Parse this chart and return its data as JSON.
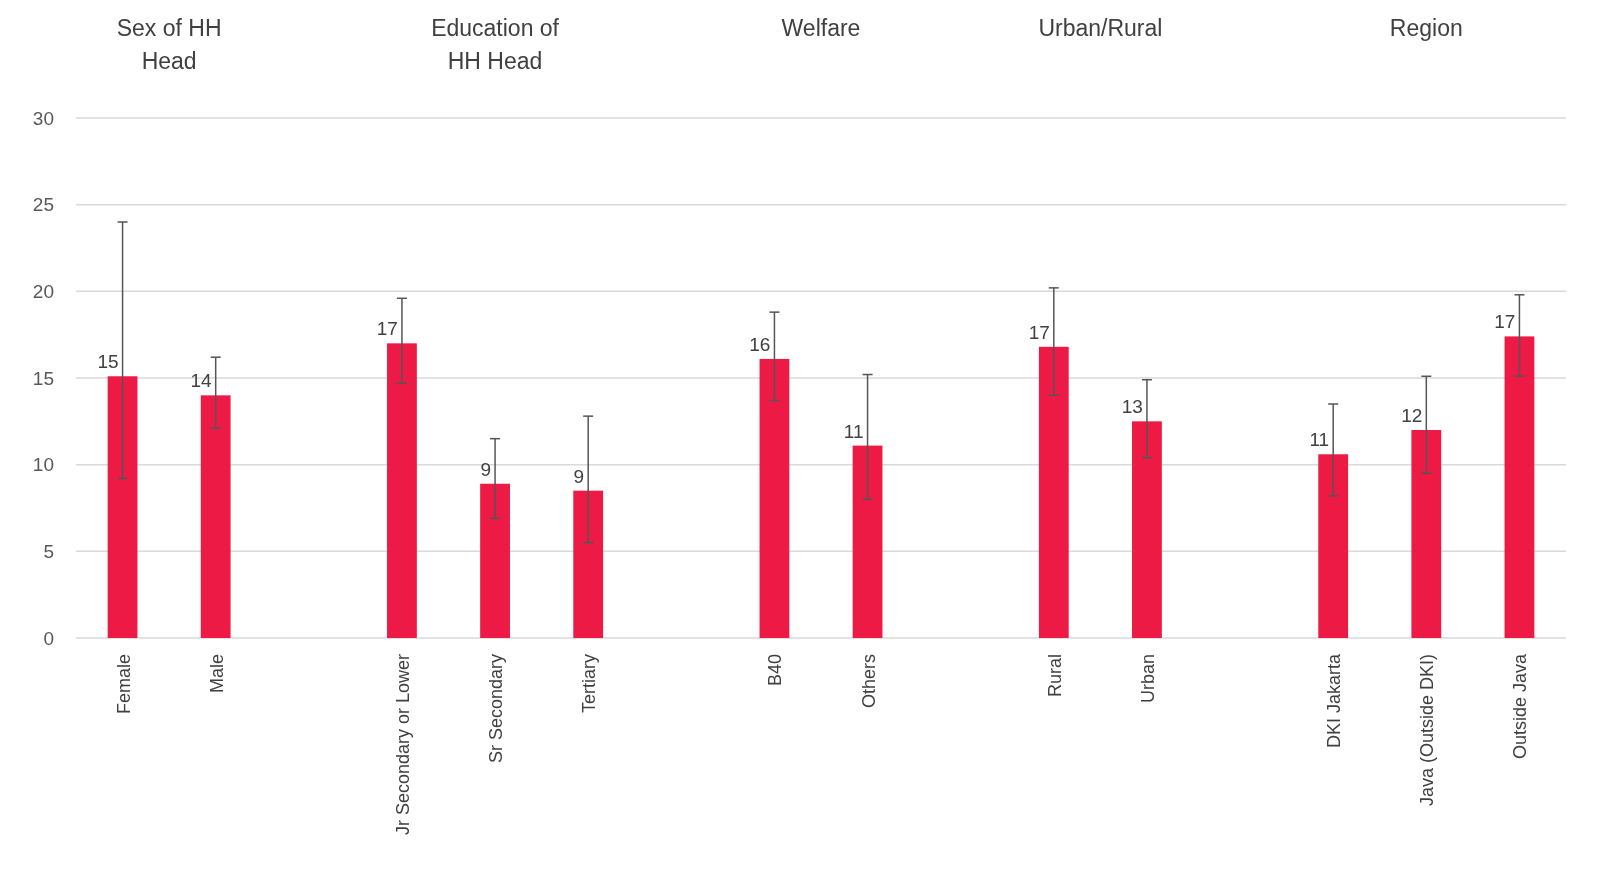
{
  "chart_data": {
    "type": "bar",
    "categories": [
      "Female",
      "Male",
      null,
      "Jr Secondary or Lower",
      "Sr Secondary",
      "Tertiary",
      null,
      "B40",
      "Others",
      null,
      "Rural",
      "Urban",
      null,
      "DKI Jakarta",
      "Java (Outside DKI)",
      "Outside Java"
    ],
    "values": [
      15.1,
      14.0,
      null,
      17.0,
      8.9,
      8.5,
      null,
      16.1,
      11.1,
      null,
      16.8,
      12.5,
      null,
      10.6,
      12.0,
      17.4
    ],
    "errors": [
      [
        9.2,
        24.0
      ],
      [
        12.1,
        16.2
      ],
      null,
      [
        14.7,
        19.6
      ],
      [
        6.9,
        11.5
      ],
      [
        5.5,
        12.8
      ],
      null,
      [
        13.7,
        18.8
      ],
      [
        8.0,
        15.2
      ],
      null,
      [
        14.0,
        20.2
      ],
      [
        10.4,
        14.9
      ],
      null,
      [
        8.2,
        13.5
      ],
      [
        9.5,
        15.1
      ],
      [
        15.1,
        19.8
      ]
    ],
    "value_labels": [
      "15",
      "14",
      null,
      "17",
      "9",
      "9",
      null,
      "16",
      "11",
      null,
      "17",
      "13",
      null,
      "11",
      "12",
      "17"
    ],
    "color": "#ed1a45",
    "annotations": [
      "Sex of HH Head",
      "Education of HH Head",
      "Welfare",
      "Urban/Rural",
      "Region"
    ],
    "ylim": [
      0,
      30
    ],
    "yticks": [
      0,
      5,
      10,
      15,
      20,
      25,
      30
    ],
    "grid": "y"
  }
}
